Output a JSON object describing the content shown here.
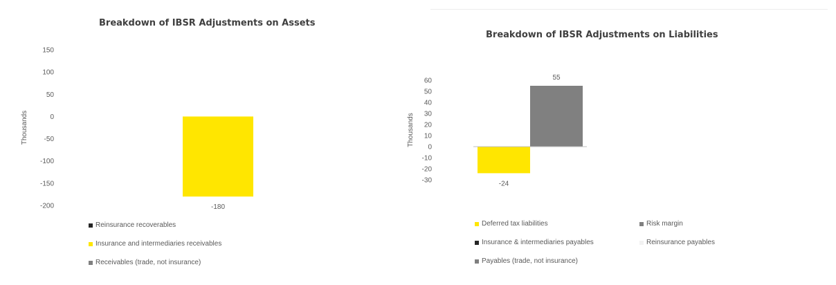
{
  "chart_data": [
    {
      "type": "bar",
      "title": "Breakdown of IBSR Adjustments on Assets",
      "ylabel": "Thousands",
      "ylim": [
        -200,
        150
      ],
      "yticks": [
        150,
        100,
        50,
        0,
        -50,
        -100,
        -150,
        -200
      ],
      "grid": false,
      "legend_position": "bottom",
      "series": [
        {
          "name": "Reinsurance recoverables",
          "color": "#262626",
          "values": [
            null
          ]
        },
        {
          "name": "Insurance and intermediaries receivables",
          "color": "#FFE600",
          "values": [
            -180
          ]
        },
        {
          "name": "Receivables (trade, not insurance)",
          "color": "#808080",
          "values": [
            null
          ]
        }
      ],
      "data_labels": [
        "-180"
      ]
    },
    {
      "type": "bar",
      "title": "Breakdown of IBSR Adjustments on Liabilities",
      "ylabel": "Thousands",
      "ylim": [
        -30,
        60
      ],
      "yticks": [
        60,
        50,
        40,
        30,
        20,
        10,
        0,
        -10,
        -20,
        -30
      ],
      "grid": false,
      "legend_position": "bottom",
      "series": [
        {
          "name": "Deferred tax liabilities",
          "color": "#FFE600",
          "values": [
            -24
          ]
        },
        {
          "name": "Risk margin",
          "color": "#808080",
          "values": [
            55
          ]
        },
        {
          "name": "Insurance & intermediaries payables",
          "color": "#262626",
          "values": [
            null
          ]
        },
        {
          "name": "Reinsurance payables",
          "color": "#f2f2f2",
          "values": [
            null
          ]
        },
        {
          "name": "Payables (trade, not insurance)",
          "color": "#7f7f7f",
          "values": [
            null
          ]
        }
      ],
      "data_labels": [
        "-24",
        "55"
      ]
    }
  ]
}
